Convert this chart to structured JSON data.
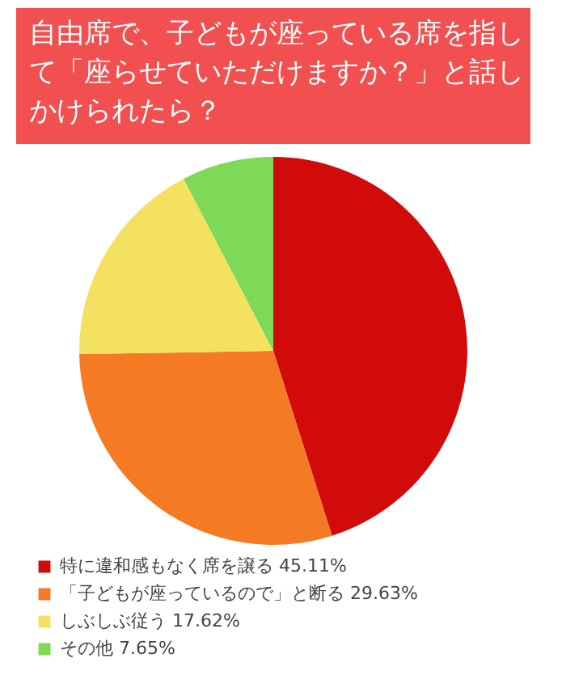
{
  "chart_data": {
    "type": "pie",
    "title": "自由席で、子どもが座っている席を指して「座らせていただけますか？」と話しかけられたら？",
    "categories": [
      "特に違和感もなく席を譲る",
      "「子どもが座っているので」と断る",
      "しぶしぶ従う",
      "その他"
    ],
    "values": [
      45.11,
      29.63,
      17.62,
      7.65
    ],
    "value_labels": [
      "45.11%",
      "29.63%",
      "17.62%",
      "7.65%"
    ],
    "colors": [
      "#d10a0a",
      "#f47a24",
      "#f4e160",
      "#7dd957"
    ],
    "legend": "bottom left"
  }
}
